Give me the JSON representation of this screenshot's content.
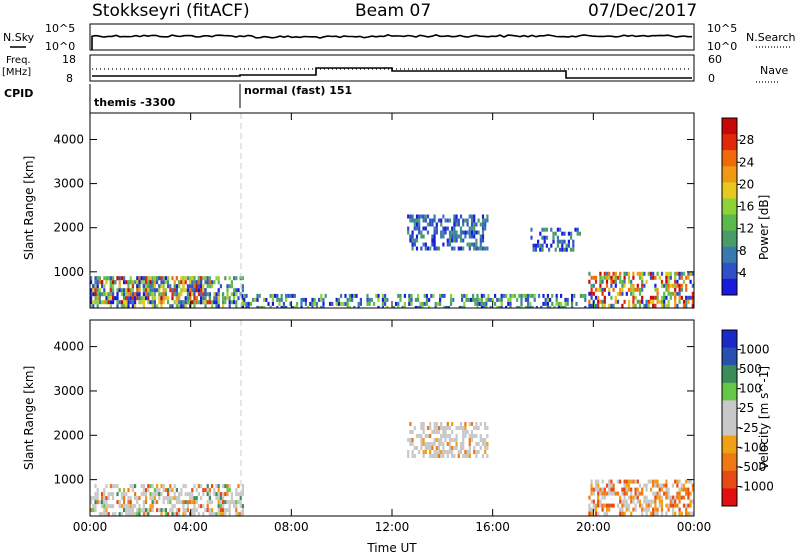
{
  "header": {
    "station": "Stokkseyri (fitACF)",
    "beam": "Beam 07",
    "date": "07/Dec/2017"
  },
  "top_panels": {
    "nsky_label": "N.Sky",
    "nsky_top": "10^5",
    "nsky_bottom": "10^0",
    "nsearch_label": "N.Search",
    "nsearch_top": "10^5",
    "nsearch_bottom": "10^0",
    "freq_label": "Freq.",
    "freq_unit": "[MHz]",
    "freq_top": "18",
    "freq_bottom": "8",
    "nave_label": "Nave",
    "nave_top": "60",
    "nave_bottom": "0",
    "cpid_label": "CPID",
    "cpid_segments": [
      {
        "label": "themis -3300"
      },
      {
        "label": "normal (fast) 151"
      }
    ]
  },
  "chart_data": [
    {
      "type": "heatmap",
      "title": "",
      "xlabel": "Time UT",
      "ylabel": "Slant Range [km]",
      "x_ticks": [
        "00:00",
        "04:00",
        "08:00",
        "12:00",
        "16:00",
        "20:00",
        "00:00"
      ],
      "y_ticks": [
        "1000",
        "2000",
        "3000",
        "4000"
      ],
      "ylim": [
        180,
        4600
      ],
      "colorbar": {
        "label": "Power [dB]",
        "ticks": [
          "4",
          "8",
          "12",
          "16",
          "20",
          "24",
          "28"
        ],
        "colors": [
          "#1a1adc",
          "#3050c8",
          "#3a78b0",
          "#4a9b6a",
          "#5ab94a",
          "#8ed23a",
          "#e6c81e",
          "#f09a14",
          "#f06a0a",
          "#e0280a",
          "#c80808"
        ]
      },
      "regions": [
        {
          "t0": 0.0,
          "t1": 6.1,
          "r0": 180,
          "r1": 900,
          "level": "low-high"
        },
        {
          "t0": 0.0,
          "t1": 4.8,
          "r0": 300,
          "r1": 900,
          "level": "high"
        },
        {
          "t0": 12.6,
          "t1": 15.8,
          "r0": 1500,
          "r1": 2300,
          "level": "low"
        },
        {
          "t0": 17.5,
          "t1": 19.5,
          "r0": 1500,
          "r1": 2000,
          "level": "low"
        },
        {
          "t0": 19.8,
          "t1": 24.0,
          "r0": 180,
          "r1": 1000,
          "level": "high"
        },
        {
          "t0": 6.0,
          "t1": 19.8,
          "r0": 180,
          "r1": 500,
          "level": "low-mid"
        }
      ]
    },
    {
      "type": "heatmap",
      "title": "",
      "xlabel": "Time UT",
      "ylabel": "Slant Range [km]",
      "x_ticks": [
        "00:00",
        "04:00",
        "08:00",
        "12:00",
        "16:00",
        "20:00",
        "00:00"
      ],
      "y_ticks": [
        "1000",
        "2000",
        "3000",
        "4000"
      ],
      "ylim": [
        180,
        4600
      ],
      "colorbar": {
        "label": "Velocity [m s^-1]",
        "ticks": [
          "1000",
          "500",
          "100",
          "25",
          "-25",
          "-100",
          "-500",
          "-1000"
        ],
        "colors": [
          "#1a28c8",
          "#2850b0",
          "#3c8c5a",
          "#64c846",
          "#c8c8c8",
          "#c8c8c8",
          "#f0a014",
          "#f07814",
          "#e84a14",
          "#e01010"
        ]
      },
      "regions": [
        {
          "t0": 0.0,
          "t1": 6.1,
          "r0": 180,
          "r1": 900,
          "velocity": "mixed negative"
        },
        {
          "t0": 12.6,
          "t1": 15.8,
          "r0": 1500,
          "r1": 2300,
          "velocity": "near zero"
        },
        {
          "t0": 19.8,
          "t1": 24.0,
          "r0": 180,
          "r1": 1000,
          "velocity": "negative"
        }
      ]
    }
  ]
}
